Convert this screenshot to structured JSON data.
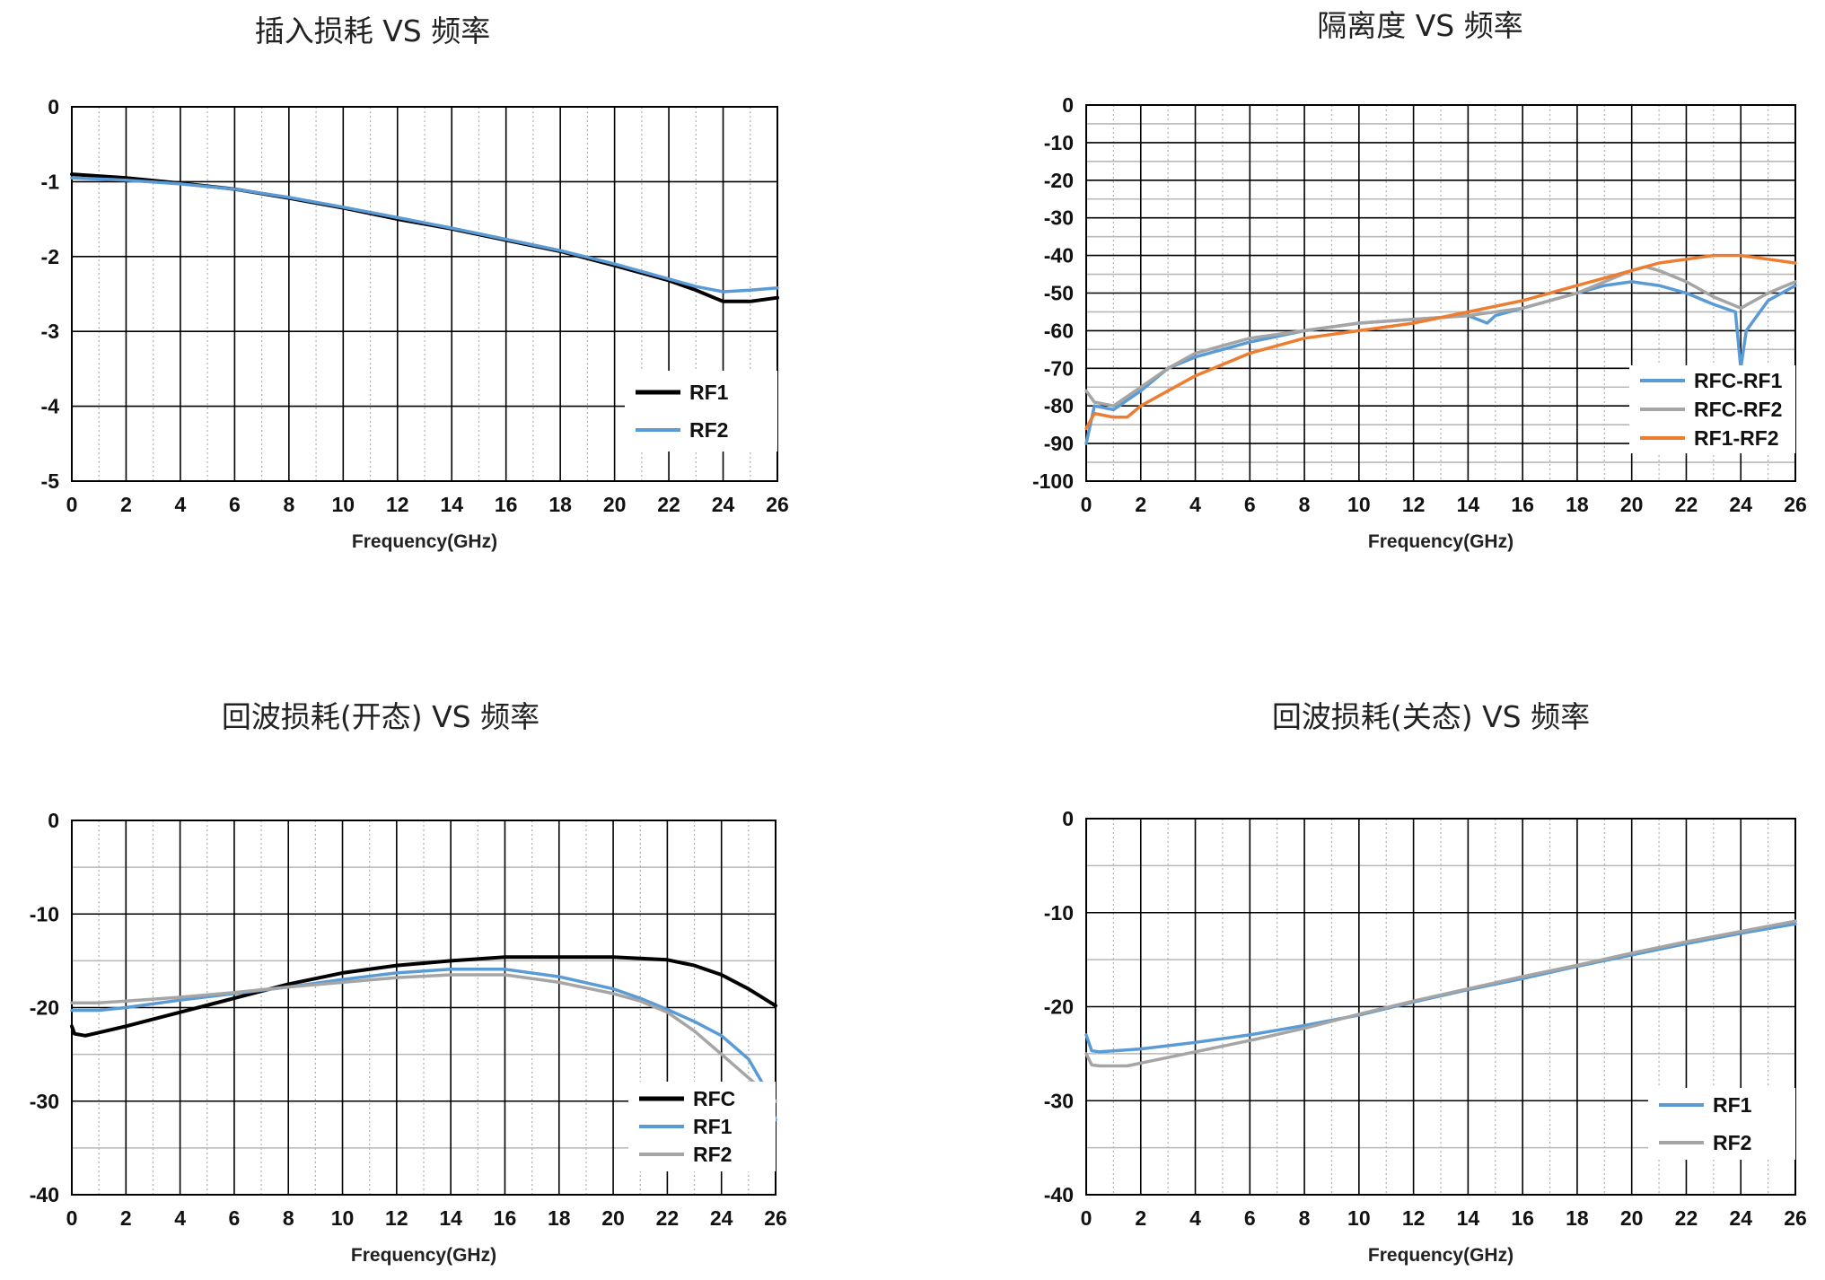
{
  "chart_data": [
    {
      "type": "line",
      "title": "插入损耗 VS 频率",
      "xlabel": "Frequency(GHz)",
      "ylabel": "",
      "xlim": [
        0,
        26
      ],
      "ylim": [
        -5,
        0
      ],
      "x_ticks": [
        "0",
        "2",
        "4",
        "6",
        "8",
        "10",
        "12",
        "14",
        "16",
        "18",
        "20",
        "22",
        "24",
        "26"
      ],
      "y_ticks": [
        "0",
        "-1",
        "-2",
        "-3",
        "-4",
        "-5"
      ],
      "y_tick_values": [
        0,
        -1,
        -2,
        -3,
        -4,
        -5
      ],
      "minor_x_grid": true,
      "minor_y_grid": false,
      "legend": "bottom-right",
      "series": [
        {
          "name": "RF1",
          "color": "#000000",
          "x": [
            0,
            2,
            4,
            6,
            8,
            10,
            12,
            14,
            16,
            18,
            20,
            22,
            23,
            24,
            25,
            26
          ],
          "y": [
            -0.9,
            -0.95,
            -1.02,
            -1.1,
            -1.22,
            -1.35,
            -1.5,
            -1.63,
            -1.78,
            -1.93,
            -2.12,
            -2.32,
            -2.45,
            -2.6,
            -2.6,
            -2.55
          ]
        },
        {
          "name": "RF2",
          "color": "#5b9bd5",
          "x": [
            0,
            2,
            4,
            6,
            8,
            10,
            12,
            14,
            16,
            18,
            20,
            22,
            23,
            24,
            25,
            26
          ],
          "y": [
            -0.95,
            -0.98,
            -1.03,
            -1.1,
            -1.21,
            -1.34,
            -1.48,
            -1.62,
            -1.77,
            -1.92,
            -2.1,
            -2.3,
            -2.4,
            -2.47,
            -2.45,
            -2.42
          ]
        }
      ]
    },
    {
      "type": "line",
      "title": "隔离度 VS 频率",
      "xlabel": "Frequency(GHz)",
      "ylabel": "",
      "xlim": [
        0,
        26
      ],
      "ylim": [
        -100,
        0
      ],
      "x_ticks": [
        "0",
        "2",
        "4",
        "6",
        "8",
        "10",
        "12",
        "14",
        "16",
        "18",
        "20",
        "22",
        "24",
        "26"
      ],
      "y_ticks": [
        "0",
        "-10",
        "-20",
        "-30",
        "-40",
        "-50",
        "-60",
        "-70",
        "-80",
        "-90",
        "-100"
      ],
      "y_tick_values": [
        0,
        -10,
        -20,
        -30,
        -40,
        -50,
        -60,
        -70,
        -80,
        -90,
        -100
      ],
      "minor_x_grid": true,
      "minor_y_grid": true,
      "legend": "bottom-right",
      "series": [
        {
          "name": "RFC-RF1",
          "color": "#5b9bd5",
          "x": [
            0,
            0.3,
            1,
            2,
            3,
            4,
            6,
            8,
            10,
            12,
            14,
            14.7,
            15,
            16,
            18,
            19,
            20,
            21,
            22,
            23,
            23.8,
            24,
            24.2,
            25,
            26
          ],
          "y": [
            -90,
            -80,
            -81,
            -76,
            -70,
            -67,
            -63,
            -60,
            -58,
            -57,
            -56,
            -58,
            -56,
            -54,
            -50,
            -48,
            -47,
            -48,
            -50,
            -53,
            -55,
            -70,
            -60,
            -52,
            -48
          ]
        },
        {
          "name": "RFC-RF2",
          "color": "#a5a5a5",
          "x": [
            0,
            0.3,
            1,
            2,
            3,
            4,
            6,
            8,
            10,
            12,
            14,
            16,
            18,
            19,
            20,
            20.5,
            21,
            22,
            23,
            24,
            25,
            26
          ],
          "y": [
            -76,
            -79,
            -80,
            -75,
            -70,
            -66,
            -62,
            -60,
            -58,
            -57,
            -56,
            -54,
            -50,
            -47,
            -44,
            -43,
            -44,
            -47,
            -51,
            -54,
            -50,
            -47
          ]
        },
        {
          "name": "RF1-RF2",
          "color": "#ed7d31",
          "x": [
            0,
            0.3,
            1,
            1.5,
            2,
            3,
            4,
            6,
            8,
            10,
            12,
            14,
            16,
            18,
            20,
            21,
            22,
            23,
            23.5,
            24,
            25,
            26
          ],
          "y": [
            -86,
            -82,
            -83,
            -83,
            -80,
            -76,
            -72,
            -66,
            -62,
            -60,
            -58,
            -55,
            -52,
            -48,
            -44,
            -42,
            -41,
            -40,
            -40,
            -40,
            -41,
            -42
          ]
        }
      ]
    },
    {
      "type": "line",
      "title": "回波损耗(开态) VS 频率",
      "xlabel": "Frequency(GHz)",
      "ylabel": "",
      "xlim": [
        0,
        26
      ],
      "ylim": [
        -40,
        0
      ],
      "x_ticks": [
        "0",
        "2",
        "4",
        "6",
        "8",
        "10",
        "12",
        "14",
        "16",
        "18",
        "20",
        "22",
        "24",
        "26"
      ],
      "y_ticks": [
        "0",
        "-10",
        "-20",
        "-30",
        "-40"
      ],
      "y_tick_values": [
        0,
        -10,
        -20,
        -30,
        -40
      ],
      "minor_x_grid": true,
      "minor_y_grid": true,
      "legend": "bottom-right",
      "series": [
        {
          "name": "RFC",
          "color": "#000000",
          "x": [
            0,
            0.1,
            0.5,
            2,
            4,
            6,
            8,
            10,
            12,
            14,
            16,
            18,
            20,
            22,
            23,
            24,
            25,
            26
          ],
          "y": [
            -22,
            -22.8,
            -23,
            -22,
            -20.5,
            -19,
            -17.5,
            -16.3,
            -15.5,
            -15,
            -14.6,
            -14.6,
            -14.6,
            -14.9,
            -15.5,
            -16.5,
            -18,
            -19.8
          ]
        },
        {
          "name": "RF1",
          "color": "#5b9bd5",
          "x": [
            0,
            1,
            2,
            4,
            6,
            8,
            10,
            12,
            14,
            16,
            18,
            20,
            21,
            22,
            23,
            24,
            25,
            25.5,
            26
          ],
          "y": [
            -20.3,
            -20.3,
            -20,
            -19.2,
            -18.5,
            -17.8,
            -17,
            -16.3,
            -15.9,
            -15.9,
            -16.7,
            -18,
            -19,
            -20.2,
            -21.5,
            -23,
            -25.5,
            -28,
            -32
          ]
        },
        {
          "name": "RF2",
          "color": "#a5a5a5",
          "x": [
            0,
            1,
            2,
            4,
            6,
            8,
            10,
            12,
            14,
            16,
            18,
            20,
            21,
            22,
            23,
            24,
            25,
            26
          ],
          "y": [
            -19.5,
            -19.5,
            -19.3,
            -18.9,
            -18.4,
            -17.8,
            -17.3,
            -16.8,
            -16.5,
            -16.5,
            -17.3,
            -18.5,
            -19.3,
            -20.5,
            -22.5,
            -25,
            -27.5,
            -30
          ]
        }
      ]
    },
    {
      "type": "line",
      "title": "回波损耗(关态) VS 频率",
      "xlabel": "Frequency(GHz)",
      "ylabel": "",
      "xlim": [
        0,
        26
      ],
      "ylim": [
        -40,
        0
      ],
      "x_ticks": [
        "0",
        "2",
        "4",
        "6",
        "8",
        "10",
        "12",
        "14",
        "16",
        "18",
        "20",
        "22",
        "24",
        "26"
      ],
      "y_ticks": [
        "0",
        "-10",
        "-20",
        "-30",
        "-40"
      ],
      "y_tick_values": [
        0,
        -10,
        -20,
        -30,
        -40
      ],
      "minor_x_grid": true,
      "minor_y_grid": true,
      "legend": "bottom-right",
      "series": [
        {
          "name": "RF1",
          "color": "#5b9bd5",
          "x": [
            0,
            0.2,
            0.5,
            2,
            4,
            6,
            8,
            10,
            12,
            14,
            16,
            18,
            20,
            22,
            24,
            26
          ],
          "y": [
            -23,
            -24.7,
            -24.8,
            -24.5,
            -23.8,
            -23,
            -22,
            -20.9,
            -19.5,
            -18.2,
            -17,
            -15.7,
            -14.5,
            -13.3,
            -12.2,
            -11.2
          ]
        },
        {
          "name": "RF2",
          "color": "#a5a5a5",
          "x": [
            0,
            0.2,
            0.5,
            1.5,
            4,
            6,
            8,
            10,
            12,
            14,
            16,
            18,
            20,
            22,
            24,
            26
          ],
          "y": [
            -25,
            -26.2,
            -26.3,
            -26.3,
            -24.8,
            -23.6,
            -22.3,
            -20.8,
            -19.4,
            -18.1,
            -16.8,
            -15.6,
            -14.3,
            -13.1,
            -12,
            -10.9
          ]
        }
      ]
    }
  ]
}
